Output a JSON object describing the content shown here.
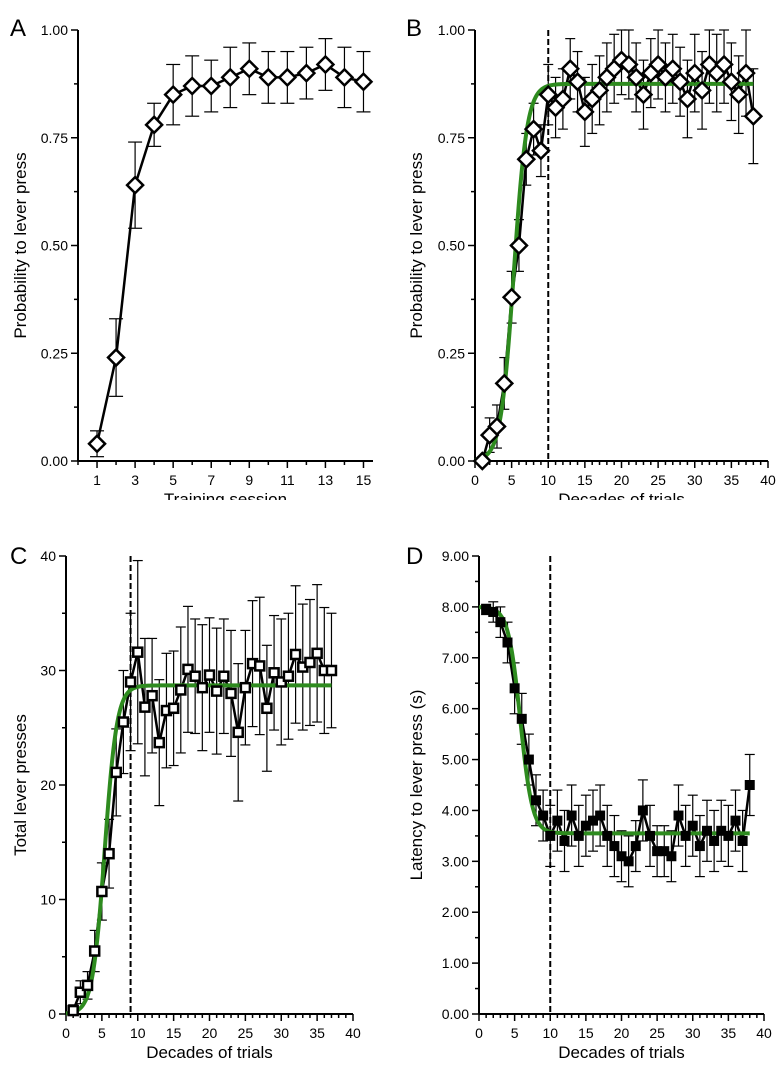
{
  "chart_data": [
    {
      "id": "A",
      "panel_label": "A",
      "type": "line",
      "marker": "diamond-open",
      "xlabel": "Training session",
      "ylabel": "Probability to lever press",
      "xlim": [
        0,
        15.5
      ],
      "ylim": [
        0,
        1
      ],
      "xticks": [
        1,
        3,
        5,
        7,
        9,
        11,
        13,
        15
      ],
      "yticks": [
        0,
        0.25,
        0.5,
        0.75,
        1
      ],
      "ytick_labels": [
        "0.00",
        "0.25",
        "0.50",
        "0.75",
        "1.00"
      ],
      "x": [
        1,
        2,
        3,
        4,
        5,
        6,
        7,
        8,
        9,
        10,
        11,
        12,
        13,
        14,
        15
      ],
      "y": [
        0.04,
        0.24,
        0.64,
        0.78,
        0.85,
        0.87,
        0.87,
        0.89,
        0.91,
        0.89,
        0.89,
        0.9,
        0.92,
        0.89,
        0.88
      ],
      "err": [
        0.03,
        0.09,
        0.1,
        0.05,
        0.07,
        0.07,
        0.06,
        0.07,
        0.06,
        0.06,
        0.06,
        0.06,
        0.06,
        0.07,
        0.07
      ],
      "vline": null,
      "fit": null
    },
    {
      "id": "B",
      "panel_label": "B",
      "type": "line",
      "marker": "diamond-open",
      "xlabel": "Decades of trials",
      "ylabel": "Probability to lever press",
      "xlim": [
        0,
        40
      ],
      "ylim": [
        0,
        1
      ],
      "xticks": [
        0,
        5,
        10,
        15,
        20,
        25,
        30,
        35,
        40
      ],
      "yticks": [
        0,
        0.25,
        0.5,
        0.75,
        1
      ],
      "ytick_labels": [
        "0.00",
        "0.25",
        "0.50",
        "0.75",
        "1.00"
      ],
      "x": [
        1,
        2,
        3,
        4,
        5,
        6,
        7,
        8,
        9,
        10,
        11,
        12,
        13,
        14,
        15,
        16,
        17,
        18,
        19,
        20,
        21,
        22,
        23,
        24,
        25,
        26,
        27,
        28,
        29,
        30,
        31,
        32,
        33,
        34,
        35,
        36,
        37,
        38
      ],
      "y": [
        0.0,
        0.06,
        0.08,
        0.18,
        0.38,
        0.5,
        0.7,
        0.77,
        0.72,
        0.85,
        0.82,
        0.84,
        0.91,
        0.88,
        0.81,
        0.84,
        0.86,
        0.89,
        0.91,
        0.93,
        0.92,
        0.89,
        0.85,
        0.9,
        0.92,
        0.89,
        0.91,
        0.88,
        0.84,
        0.9,
        0.86,
        0.92,
        0.9,
        0.92,
        0.88,
        0.85,
        0.9,
        0.8
      ],
      "err": [
        0.01,
        0.04,
        0.05,
        0.06,
        0.06,
        0.06,
        0.06,
        0.06,
        0.06,
        0.07,
        0.07,
        0.07,
        0.07,
        0.07,
        0.08,
        0.08,
        0.08,
        0.08,
        0.08,
        0.08,
        0.08,
        0.08,
        0.08,
        0.08,
        0.08,
        0.08,
        0.08,
        0.08,
        0.09,
        0.09,
        0.09,
        0.09,
        0.09,
        0.09,
        0.09,
        0.09,
        0.1,
        0.11
      ],
      "vline": 10,
      "fit": {
        "type": "sigmoid",
        "base": 0.0,
        "top": 0.875,
        "mid": 5.3,
        "slope": 0.9
      }
    },
    {
      "id": "C",
      "panel_label": "C",
      "type": "line",
      "marker": "square-open",
      "xlabel": "Decades of trials",
      "ylabel": "Total lever presses",
      "xlim": [
        0,
        40
      ],
      "ylim": [
        0,
        40
      ],
      "xticks": [
        0,
        5,
        10,
        15,
        20,
        25,
        30,
        35,
        40
      ],
      "yticks": [
        0,
        10,
        20,
        30,
        40
      ],
      "ytick_labels": [
        "0",
        "10",
        "20",
        "30",
        "40"
      ],
      "x": [
        1,
        2,
        3,
        4,
        5,
        6,
        7,
        8,
        9,
        10,
        11,
        12,
        13,
        14,
        15,
        16,
        17,
        18,
        19,
        20,
        21,
        22,
        23,
        24,
        25,
        26,
        27,
        28,
        29,
        30,
        31,
        32,
        33,
        34,
        35,
        36,
        37
      ],
      "y": [
        0.3,
        1.9,
        2.5,
        5.5,
        10.7,
        14.0,
        21.1,
        25.5,
        29.0,
        31.6,
        26.8,
        27.8,
        23.7,
        26.5,
        26.7,
        28.3,
        30.1,
        29.5,
        28.5,
        29.6,
        28.2,
        29.5,
        28.0,
        24.6,
        28.5,
        30.6,
        30.4,
        26.7,
        29.8,
        29.0,
        29.5,
        31.4,
        30.3,
        30.7,
        31.5,
        30.0,
        30.0
      ],
      "err": [
        0.5,
        1.0,
        1.2,
        1.8,
        2.5,
        3.0,
        3.8,
        4.5,
        6.0,
        8.0,
        6.0,
        5.0,
        5.5,
        5.0,
        5.0,
        5.5,
        5.5,
        5.0,
        5.5,
        5.0,
        5.5,
        5.0,
        5.5,
        6.0,
        5.0,
        5.5,
        6.0,
        5.5,
        5.0,
        5.5,
        5.5,
        6.0,
        5.5,
        5.5,
        6.0,
        5.5,
        5.0
      ],
      "vline": 9,
      "fit": {
        "type": "sigmoid",
        "base": 0.0,
        "top": 28.7,
        "mid": 5.4,
        "slope": 0.85
      }
    },
    {
      "id": "D",
      "panel_label": "D",
      "type": "line",
      "marker": "square-filled",
      "xlabel": "Decades of trials",
      "ylabel": "Latency to lever press (s)",
      "xlim": [
        0,
        40
      ],
      "ylim": [
        0,
        9
      ],
      "xticks": [
        0,
        5,
        10,
        15,
        20,
        25,
        30,
        35,
        40
      ],
      "yticks": [
        0,
        1,
        2,
        3,
        4,
        5,
        6,
        7,
        8,
        9
      ],
      "ytick_labels": [
        "0.00",
        "1.00",
        "2.00",
        "3.00",
        "4.00",
        "5.00",
        "6.00",
        "7.00",
        "8.00",
        "9.00"
      ],
      "x": [
        1,
        2,
        3,
        4,
        5,
        6,
        7,
        8,
        9,
        10,
        11,
        12,
        13,
        14,
        15,
        16,
        17,
        18,
        19,
        20,
        21,
        22,
        23,
        24,
        25,
        26,
        27,
        28,
        29,
        30,
        31,
        32,
        33,
        34,
        35,
        36,
        37,
        38
      ],
      "y": [
        7.95,
        7.9,
        7.7,
        7.3,
        6.4,
        5.8,
        5.0,
        4.2,
        3.9,
        3.5,
        3.8,
        3.4,
        3.9,
        3.5,
        3.7,
        3.8,
        3.9,
        3.5,
        3.3,
        3.1,
        3.0,
        3.3,
        4.0,
        3.5,
        3.2,
        3.2,
        3.1,
        3.9,
        3.5,
        3.7,
        3.3,
        3.6,
        3.4,
        3.6,
        3.5,
        3.8,
        3.4,
        4.5
      ],
      "err": [
        0.1,
        0.2,
        0.3,
        0.4,
        0.5,
        0.5,
        0.5,
        0.5,
        0.5,
        0.6,
        0.6,
        0.6,
        0.6,
        0.6,
        0.6,
        0.6,
        0.6,
        0.6,
        0.6,
        0.5,
        0.5,
        0.5,
        0.6,
        0.6,
        0.5,
        0.5,
        0.5,
        0.6,
        0.6,
        0.6,
        0.6,
        0.6,
        0.6,
        0.6,
        0.6,
        0.6,
        0.6,
        0.6
      ],
      "vline": 10,
      "fit": {
        "type": "sigmoid",
        "base": 8.0,
        "top": 3.55,
        "mid": 5.8,
        "slope": 0.85
      }
    }
  ],
  "colors": {
    "fit": "#2e8b1f",
    "axis": "#000000",
    "marker": "#000000"
  }
}
